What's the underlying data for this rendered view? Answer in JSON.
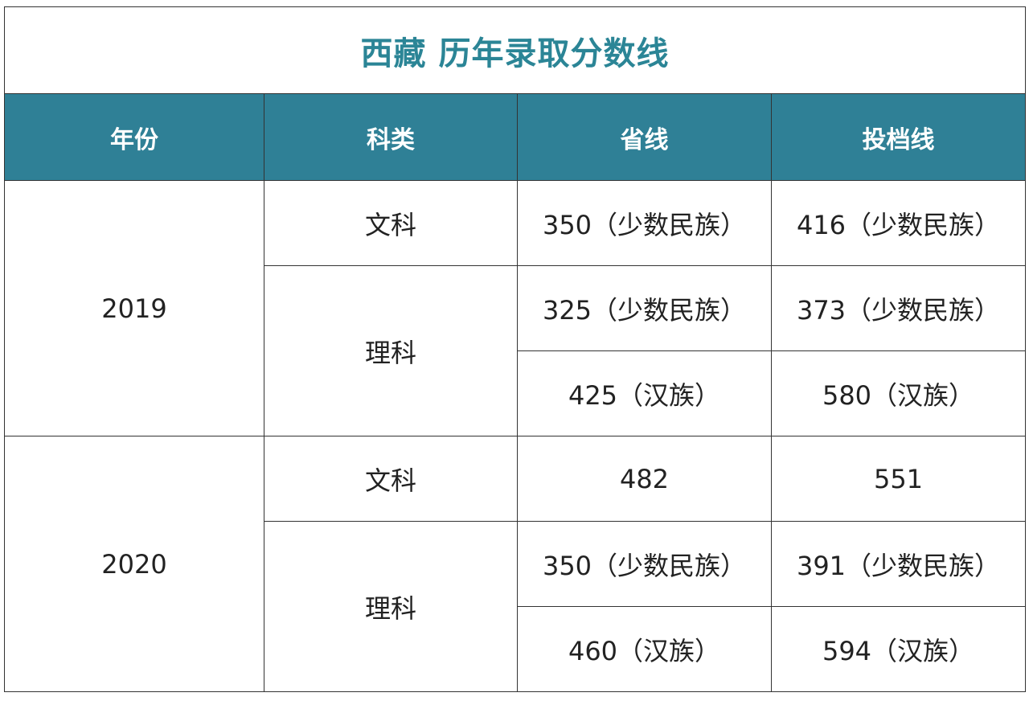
{
  "title": "西藏  历年录取分数线",
  "header": {
    "colors": {
      "header_bg": "#2f8096",
      "title": "#2b8596"
    },
    "columns": [
      "年份",
      "科类",
      "省线",
      "投档线"
    ]
  },
  "years": [
    {
      "year": "2019",
      "groups": [
        {
          "category": "文科",
          "rows": [
            {
              "provincial": "350（少数民族）",
              "admission": "416（少数民族）"
            }
          ]
        },
        {
          "category": "理科",
          "rows": [
            {
              "provincial": "325（少数民族）",
              "admission": "373（少数民族）"
            },
            {
              "provincial": "425（汉族）",
              "admission": "580（汉族）"
            }
          ]
        }
      ]
    },
    {
      "year": "2020",
      "groups": [
        {
          "category": "文科",
          "rows": [
            {
              "provincial": "482",
              "admission": "551"
            }
          ]
        },
        {
          "category": "理科",
          "rows": [
            {
              "provincial": "350（少数民族）",
              "admission": "391（少数民族）"
            },
            {
              "provincial": "460（汉族）",
              "admission": "594（汉族）"
            }
          ]
        }
      ]
    }
  ]
}
